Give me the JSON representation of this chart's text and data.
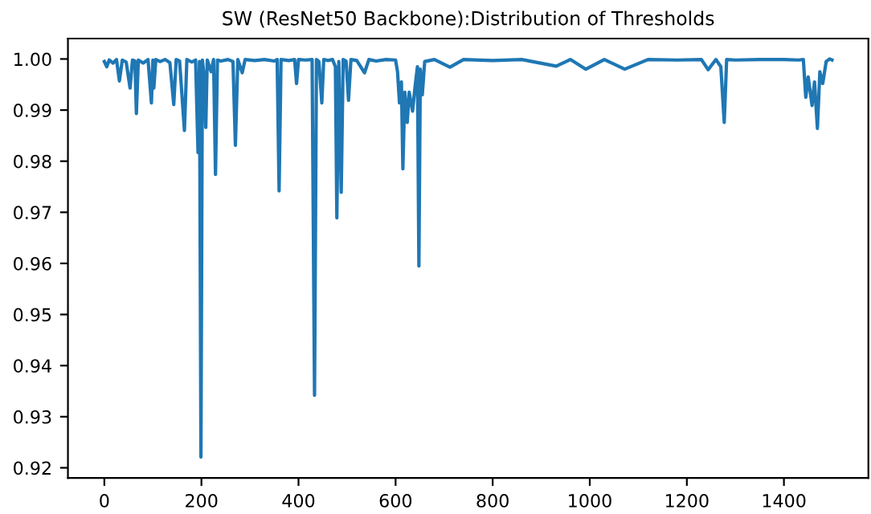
{
  "chart_data": {
    "type": "line",
    "title": "SW (ResNet50 Backbone):Distribution of Thresholds",
    "x": [
      0,
      5,
      10,
      18,
      25,
      31,
      37,
      45,
      53,
      58,
      63,
      66,
      70,
      80,
      90,
      97,
      100,
      102,
      106,
      115,
      125,
      135,
      143,
      148,
      155,
      165,
      170,
      180,
      188,
      193,
      196,
      199,
      202,
      206,
      209,
      212,
      220,
      225,
      229,
      233,
      240,
      255,
      265,
      270,
      275,
      284,
      290,
      310,
      330,
      350,
      356,
      360,
      364,
      380,
      392,
      396,
      400,
      415,
      428,
      433,
      437,
      442,
      448,
      452,
      460,
      470,
      476,
      479,
      483,
      488,
      492,
      498,
      503,
      508,
      520,
      536,
      545,
      560,
      580,
      600,
      604,
      608,
      612,
      615,
      619,
      624,
      628,
      635,
      640,
      645,
      648,
      651,
      655,
      660,
      680,
      712,
      740,
      800,
      860,
      931,
      960,
      992,
      1030,
      1072,
      1120,
      1180,
      1230,
      1244,
      1260,
      1270,
      1277,
      1282,
      1300,
      1350,
      1400,
      1430,
      1440,
      1445,
      1450,
      1458,
      1463,
      1469,
      1474,
      1480,
      1487,
      1494,
      1499
    ],
    "values": [
      0.9995,
      0.9985,
      0.9998,
      0.9992,
      0.9999,
      0.9957,
      0.9998,
      0.9994,
      0.9943,
      0.9998,
      0.9996,
      0.9893,
      0.9998,
      0.9992,
      0.9999,
      0.9914,
      0.9998,
      0.9943,
      0.9999,
      0.9995,
      0.9999,
      0.9993,
      0.9911,
      0.9999,
      0.9996,
      0.986,
      0.9999,
      0.9994,
      0.9998,
      0.9817,
      0.9995,
      0.9221,
      0.9998,
      0.9962,
      0.9866,
      0.9998,
      0.9975,
      0.9999,
      0.9774,
      0.9998,
      0.9996,
      0.9999,
      0.9995,
      0.9831,
      0.9999,
      0.9973,
      0.9999,
      0.9997,
      0.9999,
      0.9996,
      0.9999,
      0.9742,
      0.9999,
      0.9997,
      0.9999,
      0.9952,
      0.9999,
      0.9998,
      0.9999,
      0.9342,
      0.9999,
      0.9995,
      0.9914,
      0.9999,
      0.9997,
      0.9999,
      0.9985,
      0.9689,
      0.9995,
      0.9739,
      0.9999,
      0.9996,
      0.9919,
      0.9999,
      0.9997,
      0.9973,
      0.9999,
      0.9996,
      0.9999,
      0.9998,
      0.9975,
      0.9914,
      0.9955,
      0.9785,
      0.9935,
      0.9876,
      0.9935,
      0.9898,
      0.9945,
      0.9985,
      0.9595,
      0.998,
      0.993,
      0.9995,
      0.9999,
      0.9984,
      0.9999,
      0.9997,
      0.9999,
      0.9986,
      0.9999,
      0.998,
      0.9999,
      0.998,
      0.9999,
      0.9998,
      0.9999,
      0.9979,
      0.9999,
      0.9985,
      0.9876,
      0.9999,
      0.9998,
      0.9999,
      0.9999,
      0.9998,
      0.9999,
      0.9925,
      0.9965,
      0.9909,
      0.9955,
      0.9864,
      0.9975,
      0.9952,
      0.9995,
      1.0,
      0.9998
    ],
    "color": "#1f77b4",
    "xlim": [
      -75,
      1574
    ],
    "ylim": [
      0.918,
      1.004
    ],
    "xticks": [
      0,
      200,
      400,
      600,
      800,
      1000,
      1200,
      1400
    ],
    "yticks": [
      {
        "value": 0.92,
        "label": "0.92"
      },
      {
        "value": 0.93,
        "label": "0.93"
      },
      {
        "value": 0.94,
        "label": "0.94"
      },
      {
        "value": 0.95,
        "label": "0.95"
      },
      {
        "value": 0.96,
        "label": "0.96"
      },
      {
        "value": 0.97,
        "label": "0.97"
      },
      {
        "value": 0.98,
        "label": "0.98"
      },
      {
        "value": 0.99,
        "label": "0.99"
      },
      {
        "value": 1.0,
        "label": "1.00"
      }
    ],
    "grid": false,
    "legend": false
  }
}
